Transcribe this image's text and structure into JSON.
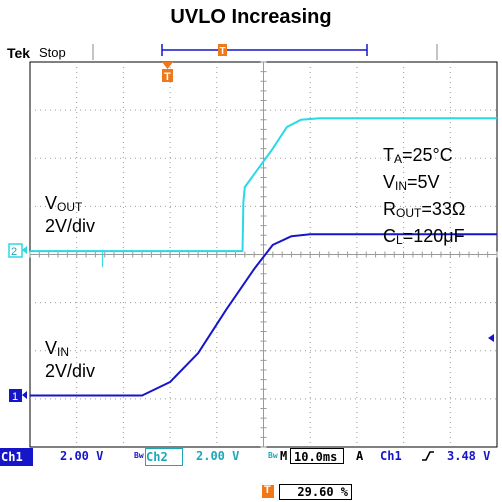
{
  "title": "UVLO Increasing",
  "status": {
    "brand": "Tek",
    "run_state": "Stop"
  },
  "colors": {
    "ch1": "#1616c8",
    "ch2": "#2ad8e6",
    "trigger": "#f07818",
    "grid": "#9a9a9a"
  },
  "channels": {
    "ch1": {
      "label": "Ch1",
      "scale": "2.00 V",
      "marker": "1"
    },
    "ch2": {
      "label": "Ch2",
      "scale": "2.00 V",
      "marker": "2"
    }
  },
  "bw_icon": "Bw",
  "timebase": {
    "label": "M",
    "value": "10.0ms"
  },
  "trigger": {
    "mode": "A",
    "source": "Ch1",
    "slope_icon": "rising-edge-icon",
    "level": "3.48 V",
    "position": "29.60 %",
    "marker": "T"
  },
  "annotations": {
    "vout_name": "V",
    "vout_sub": "OUT",
    "vout_scale": "2V/div",
    "vin_name": "V",
    "vin_sub": "IN",
    "vin_scale": "2V/div",
    "ta_name": "T",
    "ta_sub": "A",
    "ta_value": "=25°C",
    "vin2_name": "V",
    "vin2_sub": "IN",
    "vin2_value": "=5V",
    "rout_name": "R",
    "rout_sub": "OUT",
    "rout_value": "=33Ω",
    "cl_name": "C",
    "cl_sub": "L",
    "cl_value": "=120μF"
  },
  "chart_data": {
    "type": "line",
    "title": "UVLO Increasing",
    "x_unit": "div",
    "y_unit": "div",
    "xlim": [
      0,
      10
    ],
    "ylim": [
      0,
      8
    ],
    "grid": true,
    "series": [
      {
        "name": "VOUT",
        "x": [
          0,
          4.55,
          4.57,
          4.6,
          5.2,
          5.5,
          5.8,
          6.2,
          10
        ],
        "y": [
          4.07,
          4.07,
          5.1,
          5.4,
          6.2,
          6.65,
          6.8,
          6.83,
          6.83
        ]
      },
      {
        "name": "VIN",
        "x": [
          0,
          2.4,
          3.0,
          3.6,
          4.2,
          4.8,
          5.2,
          5.6,
          6.0,
          10
        ],
        "y": [
          1.07,
          1.07,
          1.35,
          1.95,
          2.85,
          3.7,
          4.2,
          4.38,
          4.42,
          4.42
        ]
      }
    ]
  }
}
